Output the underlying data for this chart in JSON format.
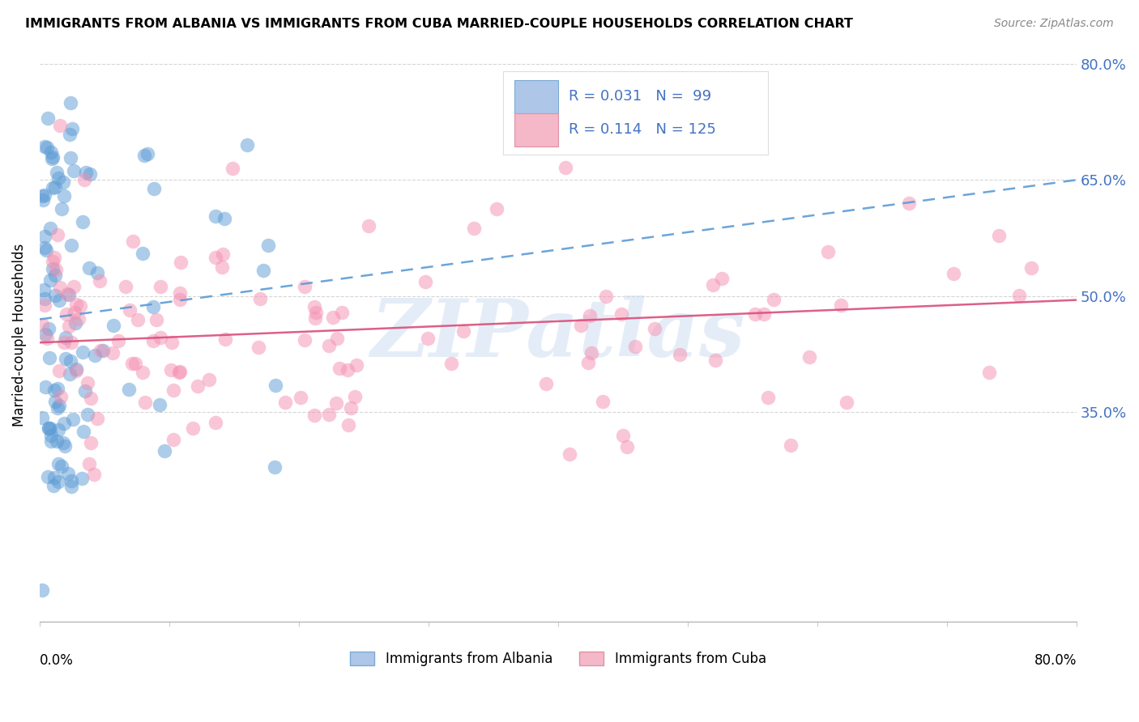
{
  "title": "IMMIGRANTS FROM ALBANIA VS IMMIGRANTS FROM CUBA MARRIED-COUPLE HOUSEHOLDS CORRELATION CHART",
  "source": "Source: ZipAtlas.com",
  "ylabel": "Married-couple Households",
  "xlim": [
    0.0,
    0.8
  ],
  "ylim": [
    0.08,
    0.82
  ],
  "yticks": [
    0.35,
    0.5,
    0.65,
    0.8
  ],
  "ytick_labels": [
    "35.0%",
    "50.0%",
    "65.0%",
    "80.0%"
  ],
  "xtick_labels": [
    "0.0%",
    "80.0%"
  ],
  "legend_albania": {
    "R": "0.031",
    "N": "99",
    "color": "#aec6e8",
    "edgecolor": "#7baad4"
  },
  "legend_cuba": {
    "R": "0.114",
    "N": "125",
    "color": "#f4b8c8",
    "edgecolor": "#e090a8"
  },
  "albania_color": "#5b9bd5",
  "cuba_color": "#f48fb1",
  "trendline_albania_color": "#5b9bd5",
  "trendline_cuba_color": "#d94f7a",
  "albania_trend": [
    0.47,
    0.65
  ],
  "cuba_trend": [
    0.44,
    0.495
  ],
  "watermark": "ZIPatlas",
  "watermark_color": "#c5d8ef",
  "background_color": "#ffffff",
  "grid_color": "#cccccc",
  "right_label_color": "#4472c4",
  "source_color": "#888888"
}
